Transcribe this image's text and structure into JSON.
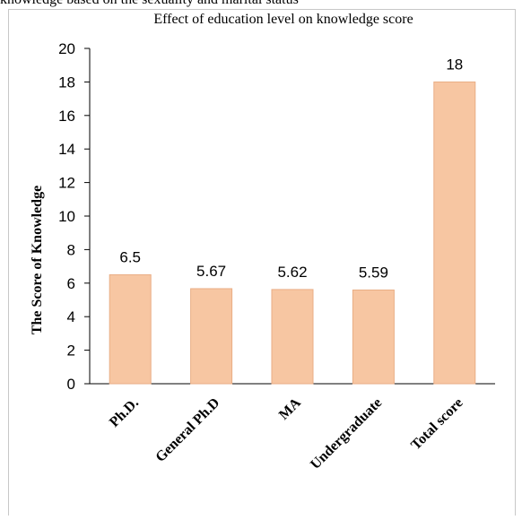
{
  "header_text": "knowledge based on the sexuality and marital status",
  "colors": {
    "bar_fill": "#f7c6a2",
    "bar_stroke": "#e9ae86",
    "frame": "#c8c8c8",
    "axis": "#000000"
  },
  "chart_data": {
    "type": "bar",
    "title": "Effect of education level on knowledge score",
    "xlabel": "",
    "ylabel": "The Score of Knowledge",
    "categories": [
      "Ph.D.",
      "General Ph.D",
      "MA",
      "Undergraduate",
      "Total score"
    ],
    "values": [
      6.5,
      5.67,
      5.62,
      5.59,
      18
    ],
    "data_labels": [
      "6.5",
      "5.67",
      "5.62",
      "5.59",
      "18"
    ],
    "ylim": [
      0,
      20
    ],
    "yticks": [
      "0",
      "2",
      "4",
      "6",
      "8",
      "10",
      "12",
      "14",
      "16",
      "18",
      "20"
    ],
    "grid": false,
    "legend": "none"
  }
}
